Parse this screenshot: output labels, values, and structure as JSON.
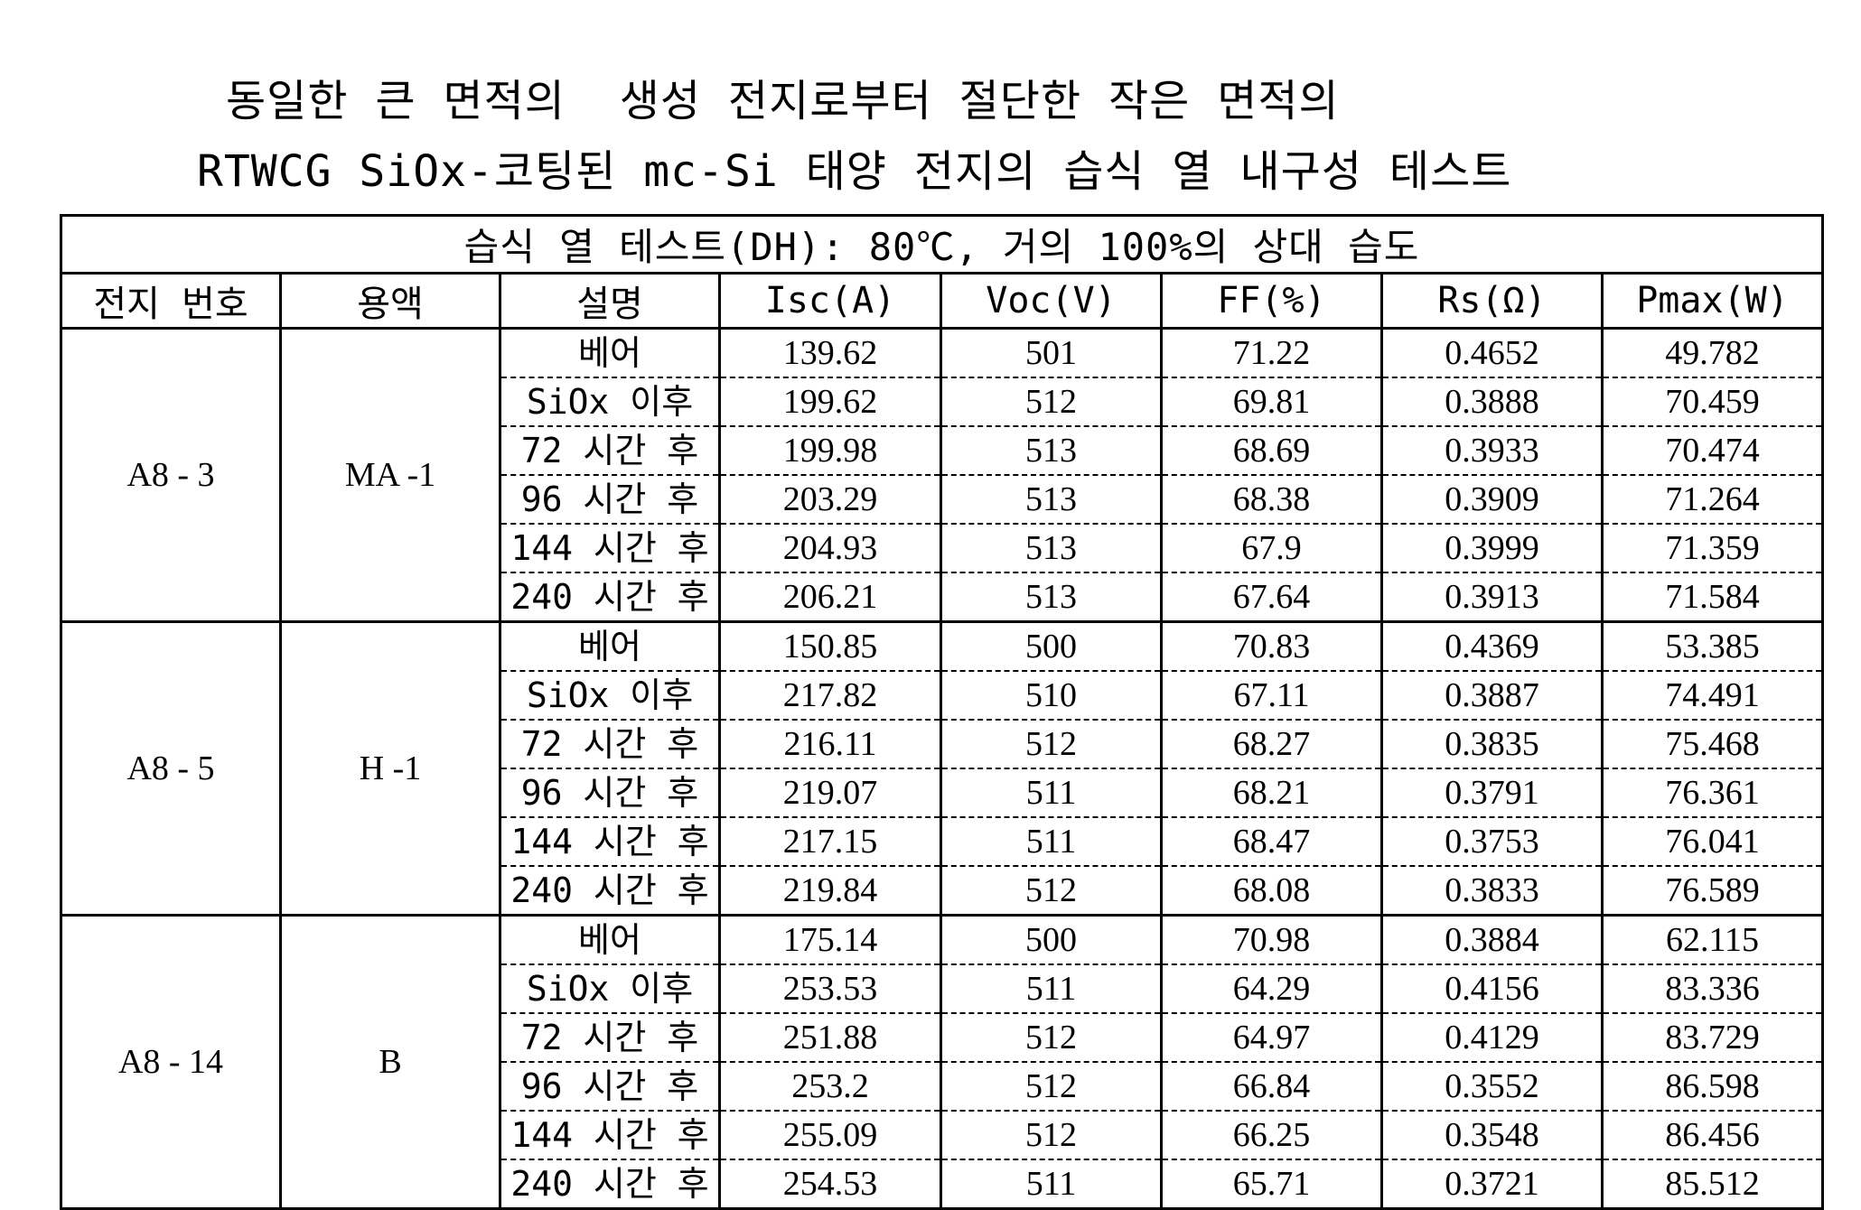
{
  "title": {
    "line1": "동일한 큰 면적의  생성 전지로부터 절단한 작은 면적의",
    "line2": "RTWCG SiOx-코팅된 mc-Si 태양 전지의 습식 열 내구성 테스트"
  },
  "table": {
    "caption": "습식 열 테스트(DH): 80℃, 거의 100%의 상대 습도",
    "headers": {
      "cell_no": "전지 번호",
      "solution": "용액",
      "description": "설명",
      "isc": "Isc(A)",
      "voc": "Voc(V)",
      "ff": "FF(%)",
      "rs": "Rs(Ω)",
      "pmax": "Pmax(W)"
    },
    "groups": [
      {
        "cell_no": "A8 - 3",
        "solution": "MA -1",
        "rows": [
          {
            "desc": "베어",
            "isc": "139.62",
            "voc": "501",
            "ff": "71.22",
            "rs": "0.4652",
            "pmax": "49.782"
          },
          {
            "desc": "SiOx 이후",
            "isc": "199.62",
            "voc": "512",
            "ff": "69.81",
            "rs": "0.3888",
            "pmax": "70.459"
          },
          {
            "desc": "72 시간 후",
            "isc": "199.98",
            "voc": "513",
            "ff": "68.69",
            "rs": "0.3933",
            "pmax": "70.474"
          },
          {
            "desc": "96 시간 후",
            "isc": "203.29",
            "voc": "513",
            "ff": "68.38",
            "rs": "0.3909",
            "pmax": "71.264"
          },
          {
            "desc": "144 시간 후",
            "isc": "204.93",
            "voc": "513",
            "ff": "67.9",
            "rs": "0.3999",
            "pmax": "71.359"
          },
          {
            "desc": "240 시간 후",
            "isc": "206.21",
            "voc": "513",
            "ff": "67.64",
            "rs": "0.3913",
            "pmax": "71.584"
          }
        ]
      },
      {
        "cell_no": "A8 - 5",
        "solution": "H -1",
        "rows": [
          {
            "desc": "베어",
            "isc": "150.85",
            "voc": "500",
            "ff": "70.83",
            "rs": "0.4369",
            "pmax": "53.385"
          },
          {
            "desc": "SiOx 이후",
            "isc": "217.82",
            "voc": "510",
            "ff": "67.11",
            "rs": "0.3887",
            "pmax": "74.491"
          },
          {
            "desc": "72 시간 후",
            "isc": "216.11",
            "voc": "512",
            "ff": "68.27",
            "rs": "0.3835",
            "pmax": "75.468"
          },
          {
            "desc": "96 시간 후",
            "isc": "219.07",
            "voc": "511",
            "ff": "68.21",
            "rs": "0.3791",
            "pmax": "76.361"
          },
          {
            "desc": "144 시간 후",
            "isc": "217.15",
            "voc": "511",
            "ff": "68.47",
            "rs": "0.3753",
            "pmax": "76.041"
          },
          {
            "desc": "240 시간 후",
            "isc": "219.84",
            "voc": "512",
            "ff": "68.08",
            "rs": "0.3833",
            "pmax": "76.589"
          }
        ]
      },
      {
        "cell_no": "A8 - 14",
        "solution": "B",
        "rows": [
          {
            "desc": "베어",
            "isc": "175.14",
            "voc": "500",
            "ff": "70.98",
            "rs": "0.3884",
            "pmax": "62.115"
          },
          {
            "desc": "SiOx 이후",
            "isc": "253.53",
            "voc": "511",
            "ff": "64.29",
            "rs": "0.4156",
            "pmax": "83.336"
          },
          {
            "desc": "72 시간 후",
            "isc": "251.88",
            "voc": "512",
            "ff": "64.97",
            "rs": "0.4129",
            "pmax": "83.729"
          },
          {
            "desc": "96 시간 후",
            "isc": "253.2",
            "voc": "512",
            "ff": "66.84",
            "rs": "0.3552",
            "pmax": "86.598"
          },
          {
            "desc": "144 시간 후",
            "isc": "255.09",
            "voc": "512",
            "ff": "66.25",
            "rs": "0.3548",
            "pmax": "86.456"
          },
          {
            "desc": "240 시간 후",
            "isc": "254.53",
            "voc": "511",
            "ff": "65.71",
            "rs": "0.3721",
            "pmax": "85.512"
          }
        ]
      }
    ]
  }
}
